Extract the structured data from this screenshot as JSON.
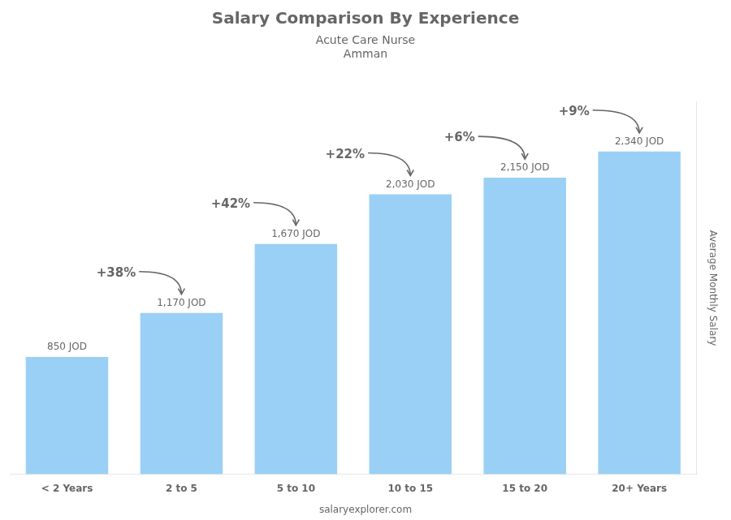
{
  "chart_data": {
    "type": "bar",
    "title": "Salary Comparison By Experience",
    "subtitle": "Acute Care Nurse",
    "city": "Amman",
    "ylabel": "Average Monthly Salary",
    "footer": "salaryexplorer.com",
    "categories": [
      "< 2 Years",
      "2 to 5",
      "5 to 10",
      "10 to 15",
      "15 to 20",
      "20+ Years"
    ],
    "values": [
      850,
      1170,
      1670,
      2030,
      2150,
      2340
    ],
    "value_labels": [
      "850 JOD",
      "1,170 JOD",
      "1,670 JOD",
      "2,030 JOD",
      "2,150 JOD",
      "2,340 JOD"
    ],
    "data_labels": true,
    "annotations": [
      {
        "text": "+38%",
        "from": "< 2 Years",
        "to": "2 to 5"
      },
      {
        "text": "+42%",
        "from": "2 to 5",
        "to": "5 to 10"
      },
      {
        "text": "+22%",
        "from": "5 to 10",
        "to": "10 to 15"
      },
      {
        "text": "+6%",
        "from": "10 to 15",
        "to": "15 to 20"
      },
      {
        "text": "+9%",
        "from": "15 to 20",
        "to": "20+ Years"
      }
    ],
    "ylim": [
      0,
      2700
    ],
    "tick_labels": "x",
    "grid": false
  }
}
